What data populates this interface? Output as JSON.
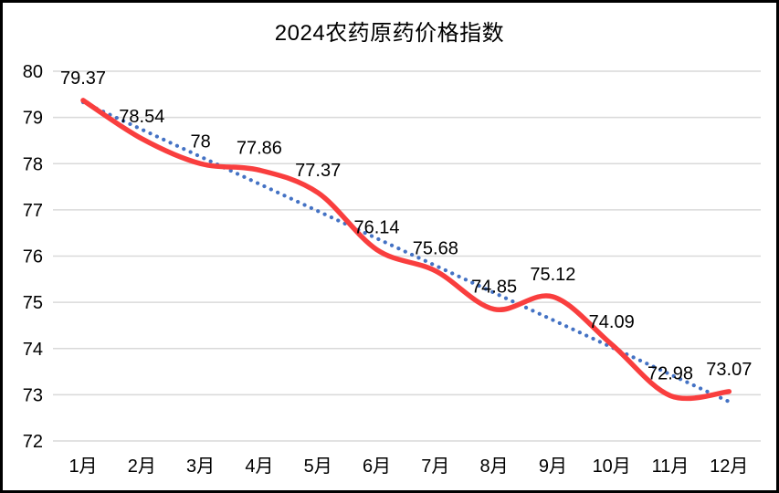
{
  "chart_data": {
    "type": "line",
    "title": "2024农药原药价格指数",
    "categories": [
      "1月",
      "2月",
      "3月",
      "4月",
      "5月",
      "6月",
      "7月",
      "8月",
      "9月",
      "10月",
      "11月",
      "12月"
    ],
    "series": [
      {
        "role": "price-index",
        "line_style": "smooth-solid",
        "color": "#f93e3e",
        "values": [
          79.37,
          78.54,
          78,
          77.86,
          77.37,
          76.14,
          75.68,
          74.85,
          75.12,
          74.09,
          72.98,
          73.07
        ]
      },
      {
        "role": "linear-trendline",
        "line_style": "dotted",
        "color": "#4472c4",
        "derived": "linear-regression-of-price-index"
      }
    ],
    "data_labels": [
      "79.37",
      "78.54",
      "78",
      "77.86",
      "77.37",
      "76.14",
      "75.68",
      "74.85",
      "75.12",
      "74.09",
      "72.98",
      "73.07"
    ],
    "xlabel": "",
    "ylabel": "",
    "ylim": [
      72,
      80
    ],
    "ytick_step": 1,
    "ytick_labels": [
      "72",
      "73",
      "74",
      "75",
      "76",
      "77",
      "78",
      "79",
      "80"
    ],
    "grid": "horizontal",
    "legend": "none",
    "colors": {
      "grid": "#d9d9d9",
      "text": "#000000",
      "background": "#ffffff",
      "frame_border": "#000000"
    }
  }
}
